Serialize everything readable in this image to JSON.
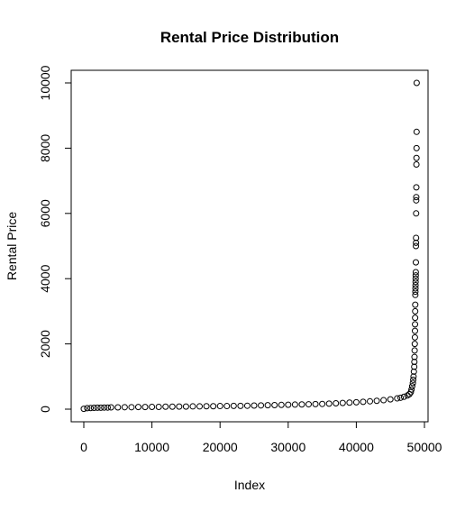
{
  "chart_data": {
    "type": "scatter",
    "title": "Rental Price Distribution",
    "xlabel": "Index",
    "ylabel": "Rental Price",
    "xlim": [
      0,
      50000
    ],
    "ylim": [
      0,
      10000
    ],
    "x_ticks": [
      0,
      10000,
      20000,
      30000,
      40000,
      50000
    ],
    "y_ticks": [
      0,
      2000,
      4000,
      6000,
      8000,
      10000
    ],
    "x_tick_labels": [
      "0",
      "10000",
      "20000",
      "30000",
      "40000",
      "50000"
    ],
    "y_tick_labels": [
      "0",
      "2000",
      "4000",
      "6000",
      "8000",
      "10000"
    ],
    "grid": false,
    "marker": "open-circle",
    "point_color": "#000000",
    "series": [
      {
        "points": [
          [
            0,
            10
          ],
          [
            500,
            30
          ],
          [
            1000,
            35
          ],
          [
            1500,
            40
          ],
          [
            2000,
            45
          ],
          [
            2500,
            45
          ],
          [
            3000,
            50
          ],
          [
            3500,
            50
          ],
          [
            4000,
            55
          ],
          [
            5000,
            55
          ],
          [
            6000,
            60
          ],
          [
            7000,
            60
          ],
          [
            8000,
            65
          ],
          [
            9000,
            65
          ],
          [
            10000,
            70
          ],
          [
            11000,
            70
          ],
          [
            12000,
            75
          ],
          [
            13000,
            75
          ],
          [
            14000,
            80
          ],
          [
            15000,
            80
          ],
          [
            16000,
            85
          ],
          [
            17000,
            85
          ],
          [
            18000,
            90
          ],
          [
            19000,
            90
          ],
          [
            20000,
            95
          ],
          [
            21000,
            95
          ],
          [
            22000,
            100
          ],
          [
            23000,
            100
          ],
          [
            24000,
            105
          ],
          [
            25000,
            110
          ],
          [
            26000,
            115
          ],
          [
            27000,
            120
          ],
          [
            28000,
            125
          ],
          [
            29000,
            130
          ],
          [
            30000,
            135
          ],
          [
            31000,
            140
          ],
          [
            32000,
            145
          ],
          [
            33000,
            150
          ],
          [
            34000,
            155
          ],
          [
            35000,
            160
          ],
          [
            36000,
            170
          ],
          [
            37000,
            180
          ],
          [
            38000,
            190
          ],
          [
            39000,
            200
          ],
          [
            40000,
            210
          ],
          [
            41000,
            225
          ],
          [
            42000,
            240
          ],
          [
            43000,
            255
          ],
          [
            44000,
            275
          ],
          [
            45000,
            300
          ],
          [
            46000,
            330
          ],
          [
            46500,
            350
          ],
          [
            47000,
            380
          ],
          [
            47500,
            420
          ],
          [
            47800,
            460
          ],
          [
            48000,
            520
          ],
          [
            48100,
            600
          ],
          [
            48200,
            700
          ],
          [
            48300,
            800
          ],
          [
            48350,
            900
          ],
          [
            48400,
            1000
          ],
          [
            48450,
            1150
          ],
          [
            48500,
            1300
          ],
          [
            48520,
            1450
          ],
          [
            48540,
            1600
          ],
          [
            48560,
            1800
          ],
          [
            48580,
            2000
          ],
          [
            48600,
            2200
          ],
          [
            48610,
            2400
          ],
          [
            48620,
            2600
          ],
          [
            48630,
            2800
          ],
          [
            48640,
            3000
          ],
          [
            48650,
            3200
          ],
          [
            48660,
            3500
          ],
          [
            48670,
            3600
          ],
          [
            48680,
            3700
          ],
          [
            48690,
            3800
          ],
          [
            48700,
            3900
          ],
          [
            48710,
            4000
          ],
          [
            48720,
            4100
          ],
          [
            48730,
            4200
          ],
          [
            48740,
            4500
          ],
          [
            48750,
            5000
          ],
          [
            48760,
            5100
          ],
          [
            48770,
            5250
          ],
          [
            48780,
            6000
          ],
          [
            48790,
            6400
          ],
          [
            48800,
            6500
          ],
          [
            48810,
            6800
          ],
          [
            48820,
            7500
          ],
          [
            48830,
            7700
          ],
          [
            48840,
            8000
          ],
          [
            48850,
            8500
          ],
          [
            48860,
            10000
          ]
        ]
      }
    ]
  }
}
